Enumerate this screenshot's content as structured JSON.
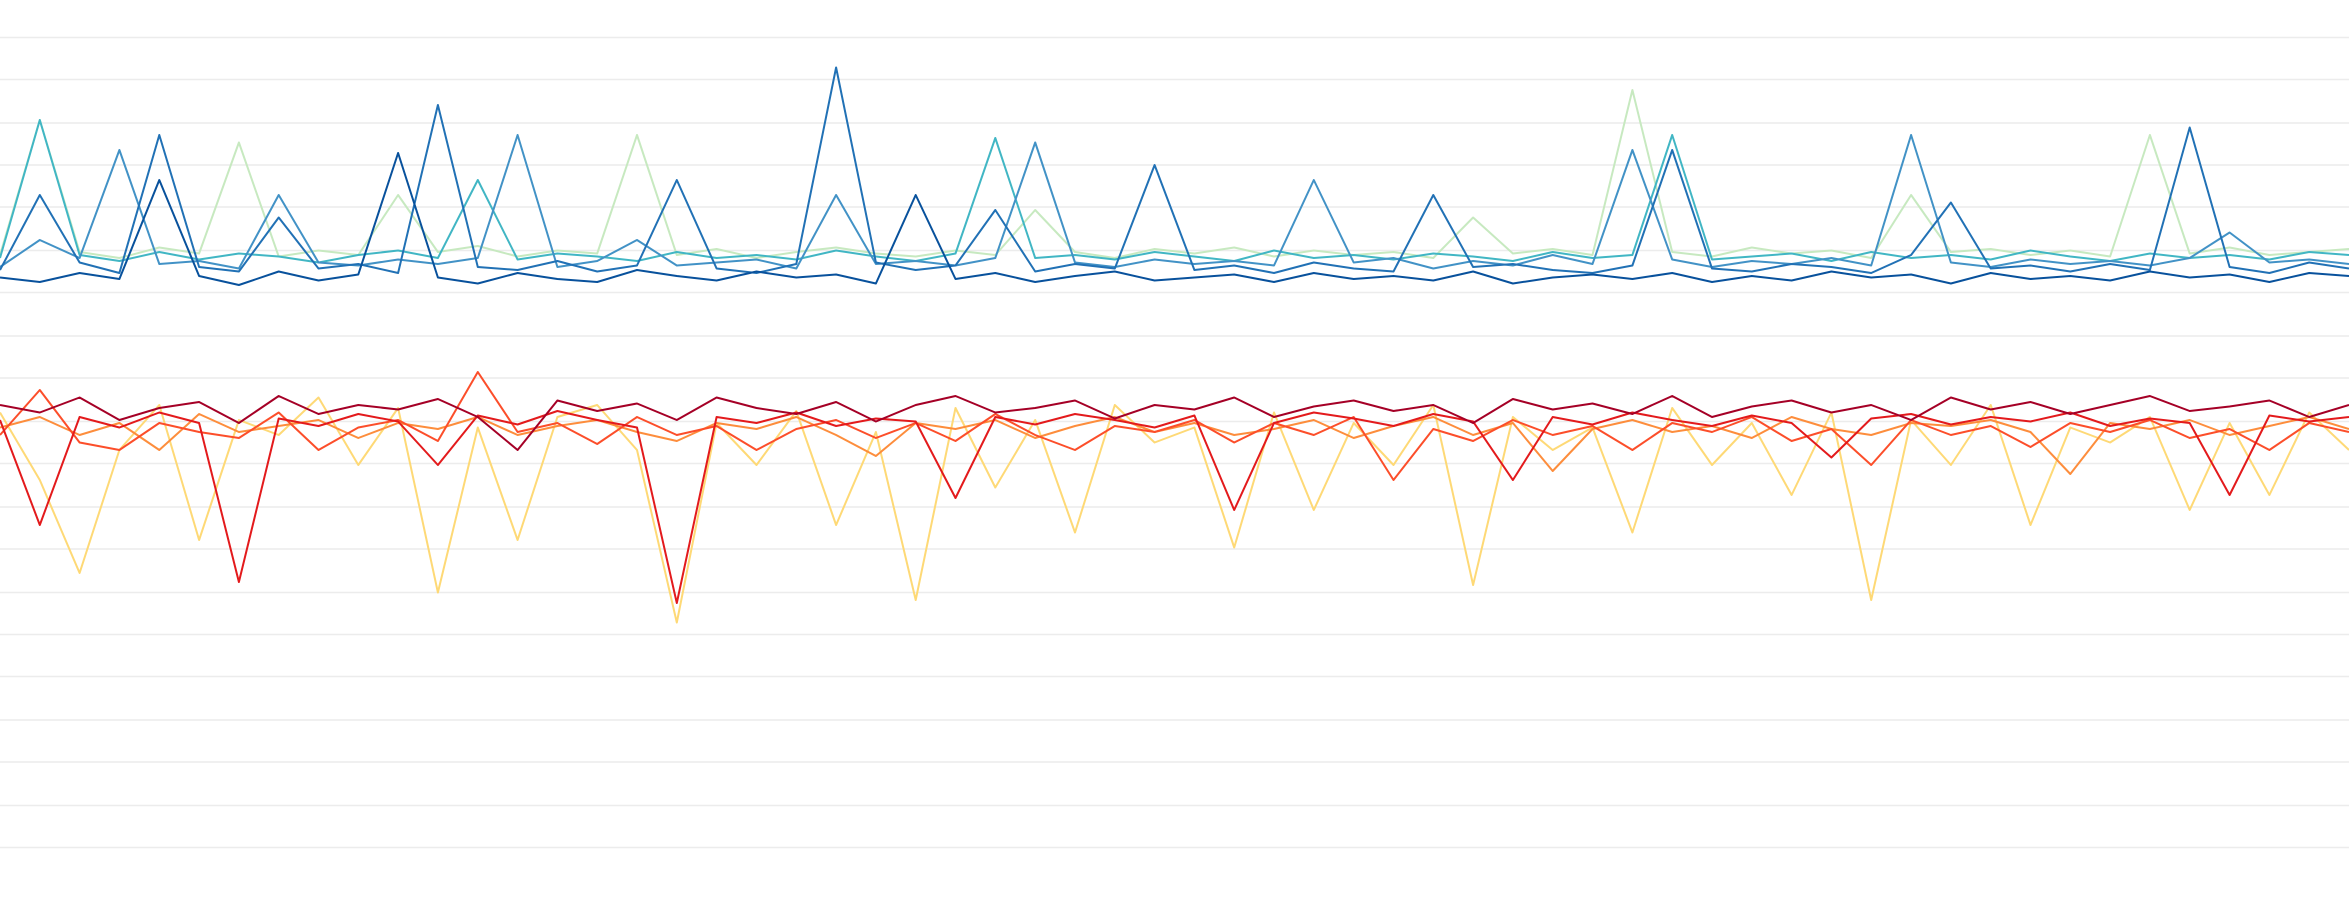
{
  "chart_data": {
    "type": "line",
    "xlim": [
      0,
      59
    ],
    "ylim": [
      0,
      600
    ],
    "grid": true,
    "yticks": [
      35,
      63,
      92,
      120,
      149,
      177,
      205,
      234,
      262,
      291,
      319,
      348,
      376,
      405,
      433,
      462,
      490,
      518,
      547,
      575
    ],
    "x": [
      0,
      1,
      2,
      3,
      4,
      5,
      6,
      7,
      8,
      9,
      10,
      11,
      12,
      13,
      14,
      15,
      16,
      17,
      18,
      19,
      20,
      21,
      22,
      23,
      24,
      25,
      26,
      27,
      28,
      29,
      30,
      31,
      32,
      33,
      34,
      35,
      36,
      37,
      38,
      39,
      40,
      41,
      42,
      43,
      44,
      45,
      46,
      47,
      48,
      49,
      50,
      51,
      52,
      53,
      54,
      55,
      56,
      57,
      58,
      59
    ],
    "series": [
      {
        "color": "#c7e9c0",
        "values": [
          430,
          520,
          432,
          428,
          435,
          431,
          505,
          429,
          433,
          430,
          470,
          432,
          436,
          429,
          433,
          431,
          510,
          430,
          434,
          428,
          432,
          435,
          431,
          429,
          433,
          430,
          460,
          432,
          428,
          434,
          431,
          435,
          429,
          433,
          430,
          432,
          428,
          455,
          431,
          434,
          430,
          540,
          432,
          429,
          435,
          431,
          433,
          428,
          470,
          432,
          434,
          430,
          433,
          429,
          510,
          431,
          435,
          430,
          432,
          434
        ]
      },
      {
        "color": "#41b6c4",
        "values": [
          428,
          520,
          430,
          426,
          432,
          427,
          431,
          429,
          425,
          430,
          433,
          428,
          480,
          427,
          431,
          429,
          426,
          432,
          428,
          430,
          427,
          433,
          429,
          426,
          431,
          508,
          428,
          430,
          427,
          432,
          429,
          426,
          433,
          428,
          430,
          427,
          431,
          429,
          426,
          432,
          428,
          430,
          510,
          427,
          429,
          431,
          426,
          432,
          428,
          430,
          427,
          433,
          429,
          426,
          431,
          428,
          430,
          427,
          432,
          430
        ]
      },
      {
        "color": "#4292c6",
        "values": [
          422,
          440,
          428,
          500,
          424,
          426,
          421,
          470,
          425,
          423,
          427,
          424,
          428,
          510,
          422,
          426,
          440,
          423,
          425,
          427,
          421,
          470,
          424,
          426,
          423,
          428,
          505,
          425,
          422,
          427,
          424,
          426,
          423,
          480,
          425,
          428,
          421,
          426,
          423,
          430,
          424,
          500,
          427,
          422,
          426,
          424,
          428,
          423,
          510,
          425,
          422,
          427,
          424,
          426,
          423,
          428,
          445,
          425,
          427,
          424
        ]
      },
      {
        "color": "#2171b5",
        "values": [
          420,
          470,
          425,
          418,
          510,
          422,
          419,
          455,
          421,
          424,
          418,
          530,
          422,
          420,
          426,
          419,
          423,
          480,
          421,
          418,
          424,
          555,
          425,
          420,
          423,
          460,
          419,
          424,
          421,
          490,
          420,
          423,
          418,
          425,
          421,
          419,
          470,
          422,
          424,
          420,
          418,
          423,
          500,
          421,
          419,
          424,
          422,
          418,
          430,
          465,
          421,
          423,
          419,
          424,
          420,
          515,
          422,
          418,
          425,
          421
        ]
      },
      {
        "color": "#08519c",
        "values": [
          415,
          412,
          418,
          414,
          480,
          416,
          410,
          419,
          413,
          417,
          498,
          415,
          411,
          418,
          414,
          412,
          420,
          416,
          413,
          419,
          415,
          417,
          411,
          470,
          414,
          418,
          412,
          416,
          419,
          413,
          415,
          417,
          412,
          418,
          414,
          416,
          413,
          419,
          411,
          415,
          417,
          414,
          418,
          412,
          416,
          413,
          419,
          415,
          417,
          411,
          418,
          414,
          416,
          413,
          419,
          415,
          417,
          412,
          418,
          416
        ]
      },
      {
        "color": "#fed976",
        "values": [
          325,
          280,
          218,
          300,
          330,
          240,
          320,
          310,
          335,
          290,
          328,
          205,
          315,
          240,
          322,
          330,
          300,
          185,
          318,
          290,
          326,
          250,
          312,
          200,
          328,
          275,
          320,
          245,
          330,
          305,
          315,
          235,
          325,
          260,
          318,
          290,
          330,
          210,
          322,
          300,
          315,
          245,
          328,
          290,
          318,
          270,
          325,
          200,
          320,
          290,
          330,
          250,
          315,
          305,
          322,
          260,
          318,
          270,
          325,
          300
        ]
      },
      {
        "color": "#fd8d3c",
        "values": [
          315,
          322,
          310,
          318,
          300,
          324,
          312,
          316,
          320,
          308,
          318,
          314,
          322,
          310,
          316,
          320,
          312,
          306,
          318,
          314,
          322,
          310,
          296,
          318,
          314,
          320,
          308,
          316,
          322,
          312,
          318,
          310,
          314,
          320,
          308,
          316,
          322,
          310,
          318,
          286,
          314,
          320,
          312,
          316,
          308,
          322,
          314,
          310,
          318,
          316,
          320,
          312,
          284,
          318,
          314,
          320,
          310,
          316,
          322,
          314
        ]
      },
      {
        "color": "#fc4e2a",
        "values": [
          310,
          340,
          305,
          300,
          318,
          312,
          308,
          325,
          300,
          315,
          320,
          306,
          352,
          312,
          318,
          304,
          322,
          310,
          316,
          300,
          314,
          320,
          308,
          318,
          306,
          324,
          310,
          300,
          316,
          312,
          320,
          305,
          318,
          310,
          322,
          280,
          314,
          306,
          320,
          310,
          316,
          300,
          318,
          312,
          322,
          306,
          314,
          290,
          320,
          310,
          316,
          302,
          318,
          312,
          320,
          308,
          314,
          300,
          318,
          312
        ]
      },
      {
        "color": "#e31a1c",
        "values": [
          320,
          250,
          322,
          315,
          325,
          318,
          212,
          321,
          316,
          324,
          319,
          290,
          323,
          317,
          326,
          320,
          315,
          198,
          322,
          318,
          325,
          316,
          321,
          319,
          268,
          322,
          317,
          324,
          320,
          315,
          323,
          260,
          318,
          325,
          321,
          316,
          324,
          319,
          280,
          322,
          317,
          325,
          320,
          316,
          323,
          318,
          295,
          321,
          324,
          317,
          322,
          319,
          325,
          316,
          321,
          318,
          270,
          323,
          319,
          322
        ]
      },
      {
        "color": "#a50026",
        "values": [
          330,
          325,
          335,
          320,
          328,
          332,
          318,
          336,
          324,
          330,
          327,
          334,
          322,
          300,
          333,
          326,
          331,
          320,
          335,
          328,
          324,
          332,
          319,
          330,
          336,
          325,
          328,
          333,
          321,
          330,
          327,
          335,
          322,
          329,
          333,
          326,
          330,
          318,
          334,
          327,
          331,
          324,
          336,
          322,
          329,
          333,
          325,
          330,
          320,
          335,
          327,
          332,
          324,
          330,
          336,
          326,
          329,
          333,
          322,
          330
        ]
      }
    ]
  }
}
